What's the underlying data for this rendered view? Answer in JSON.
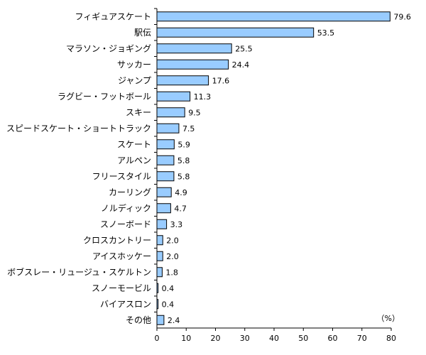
{
  "chart_data": {
    "type": "bar",
    "orientation": "horizontal",
    "categories": [
      "フィギュアスケート",
      "駅伝",
      "マラソン・ジョギング",
      "サッカー",
      "ジャンプ",
      "ラグビー・フットボール",
      "スキー",
      "スピードスケート・ショートトラック",
      "スケート",
      "アルペン",
      "フリースタイル",
      "カーリング",
      "ノルディック",
      "スノーボード",
      "クロスカントリー",
      "アイスホッケー",
      "ボブスレー・リュージュ・スケルトン",
      "スノーモービル",
      "バイアスロン",
      "その他"
    ],
    "values": [
      79.6,
      53.5,
      25.5,
      24.4,
      17.6,
      11.3,
      9.5,
      7.5,
      5.9,
      5.8,
      5.8,
      4.9,
      4.7,
      3.3,
      2.0,
      2.0,
      1.8,
      0.4,
      0.4,
      2.4
    ],
    "value_labels": [
      "79.6",
      "53.5",
      "25.5",
      "24.4",
      "17.6",
      "11.3",
      "9.5",
      "7.5",
      "5.9",
      "5.8",
      "5.8",
      "4.9",
      "4.7",
      "3.3",
      "2.0",
      "2.0",
      "1.8",
      "0.4",
      "0.4",
      "2.4"
    ],
    "x_ticks": [
      "0",
      "10",
      "20",
      "30",
      "40",
      "50",
      "60",
      "70",
      "80"
    ],
    "xlim": [
      0,
      80
    ],
    "unit_label": "（%）",
    "bar_color": "#99ccff",
    "bar_stroke": "#000000",
    "grid": false,
    "legend": "none"
  }
}
